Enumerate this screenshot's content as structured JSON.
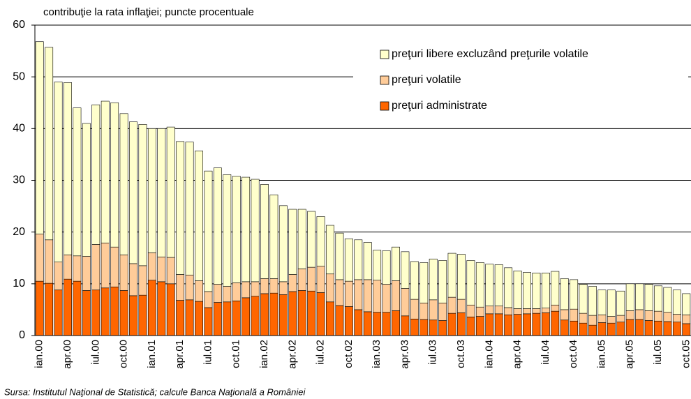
{
  "chart_data": {
    "type": "stacked_bar",
    "title": "contribuţie la rata inflaţiei; puncte procentuale",
    "source": "Sursa: Institutul Naţional de Statistică; calcule Banca Naţională a României",
    "categories": [
      "ian.00",
      null,
      null,
      "apr.00",
      null,
      null,
      "iul.00",
      null,
      null,
      "oct.00",
      null,
      null,
      "ian.01",
      null,
      null,
      "apr.01",
      null,
      null,
      "iul.01",
      null,
      null,
      "oct.01",
      null,
      null,
      "ian.02",
      null,
      null,
      "apr.02",
      null,
      null,
      "iul.02",
      null,
      null,
      "oct.02",
      null,
      null,
      "ian.03",
      null,
      null,
      "apr.03",
      null,
      null,
      "iul.03",
      null,
      null,
      "oct.03",
      null,
      null,
      "ian.04",
      null,
      null,
      "apr.04",
      null,
      null,
      "iul.04",
      null,
      null,
      "oct.04",
      null,
      null,
      "ian.05",
      null,
      null,
      "apr.05",
      null,
      null,
      "iul.05",
      null,
      null,
      "oct.05"
    ],
    "series": [
      {
        "name": "preţuri administrate",
        "color": "#ff6600",
        "values": [
          10.5,
          10.1,
          8.8,
          10.9,
          10.5,
          8.7,
          8.8,
          9.2,
          9.4,
          8.7,
          7.7,
          7.8,
          10.7,
          10.4,
          10.0,
          6.8,
          6.9,
          6.6,
          5.4,
          6.4,
          6.5,
          6.7,
          7.3,
          7.6,
          8.1,
          8.2,
          7.9,
          8.5,
          8.7,
          8.6,
          8.3,
          6.5,
          5.8,
          5.6,
          5.0,
          4.6,
          4.5,
          4.5,
          4.8,
          3.8,
          3.2,
          3.1,
          3.0,
          2.9,
          4.3,
          4.4,
          3.6,
          3.7,
          4.2,
          4.2,
          4.0,
          4.1,
          4.2,
          4.3,
          4.4,
          4.7,
          3.0,
          2.8,
          2.4,
          2.0,
          2.5,
          2.4,
          2.6,
          3.1,
          3.1,
          2.9,
          2.8,
          2.7,
          2.6,
          2.3
        ]
      },
      {
        "name": "preţuri volatile",
        "color": "#ffcc99",
        "values": [
          9.1,
          8.4,
          5.4,
          4.7,
          4.9,
          6.6,
          8.8,
          8.7,
          7.7,
          6.9,
          6.2,
          5.7,
          5.3,
          4.8,
          5.1,
          5.0,
          4.8,
          4.0,
          3.1,
          3.5,
          3.0,
          3.5,
          3.1,
          2.8,
          2.9,
          2.8,
          2.5,
          3.3,
          4.2,
          4.6,
          5.1,
          5.4,
          5.0,
          4.9,
          5.8,
          6.2,
          6.2,
          5.4,
          5.8,
          5.3,
          3.8,
          3.2,
          3.9,
          3.4,
          3.1,
          2.6,
          2.3,
          1.8,
          1.5,
          1.5,
          1.4,
          1.1,
          1.0,
          0.9,
          0.9,
          1.2,
          2.0,
          2.3,
          1.9,
          1.9,
          1.5,
          1.3,
          1.3,
          1.7,
          1.9,
          1.9,
          1.9,
          1.8,
          1.5,
          1.7
        ]
      },
      {
        "name": "preţuri libere excluzând preţurile volatile",
        "color": "#ffffcc",
        "values": [
          37.2,
          37.2,
          34.8,
          33.3,
          28.6,
          25.7,
          27.0,
          27.4,
          27.9,
          27.3,
          27.4,
          27.3,
          24.0,
          24.8,
          25.2,
          25.7,
          25.7,
          25.1,
          23.3,
          22.5,
          21.6,
          20.6,
          20.2,
          19.8,
          18.2,
          16.2,
          14.7,
          12.6,
          11.5,
          10.8,
          9.6,
          9.4,
          9.0,
          8.2,
          7.7,
          7.2,
          5.8,
          6.5,
          6.5,
          7.1,
          7.3,
          7.8,
          7.9,
          8.2,
          8.5,
          8.7,
          8.6,
          8.6,
          8.1,
          8.0,
          7.7,
          7.3,
          7.0,
          6.9,
          6.8,
          6.5,
          6.0,
          5.7,
          5.6,
          5.6,
          4.8,
          5.1,
          4.7,
          5.2,
          5.0,
          5.1,
          4.9,
          4.8,
          4.7,
          4.1
        ]
      }
    ],
    "ylim": [
      0,
      60
    ],
    "yticks": [
      0,
      10,
      20,
      30,
      40,
      50,
      60
    ],
    "grid": true
  }
}
